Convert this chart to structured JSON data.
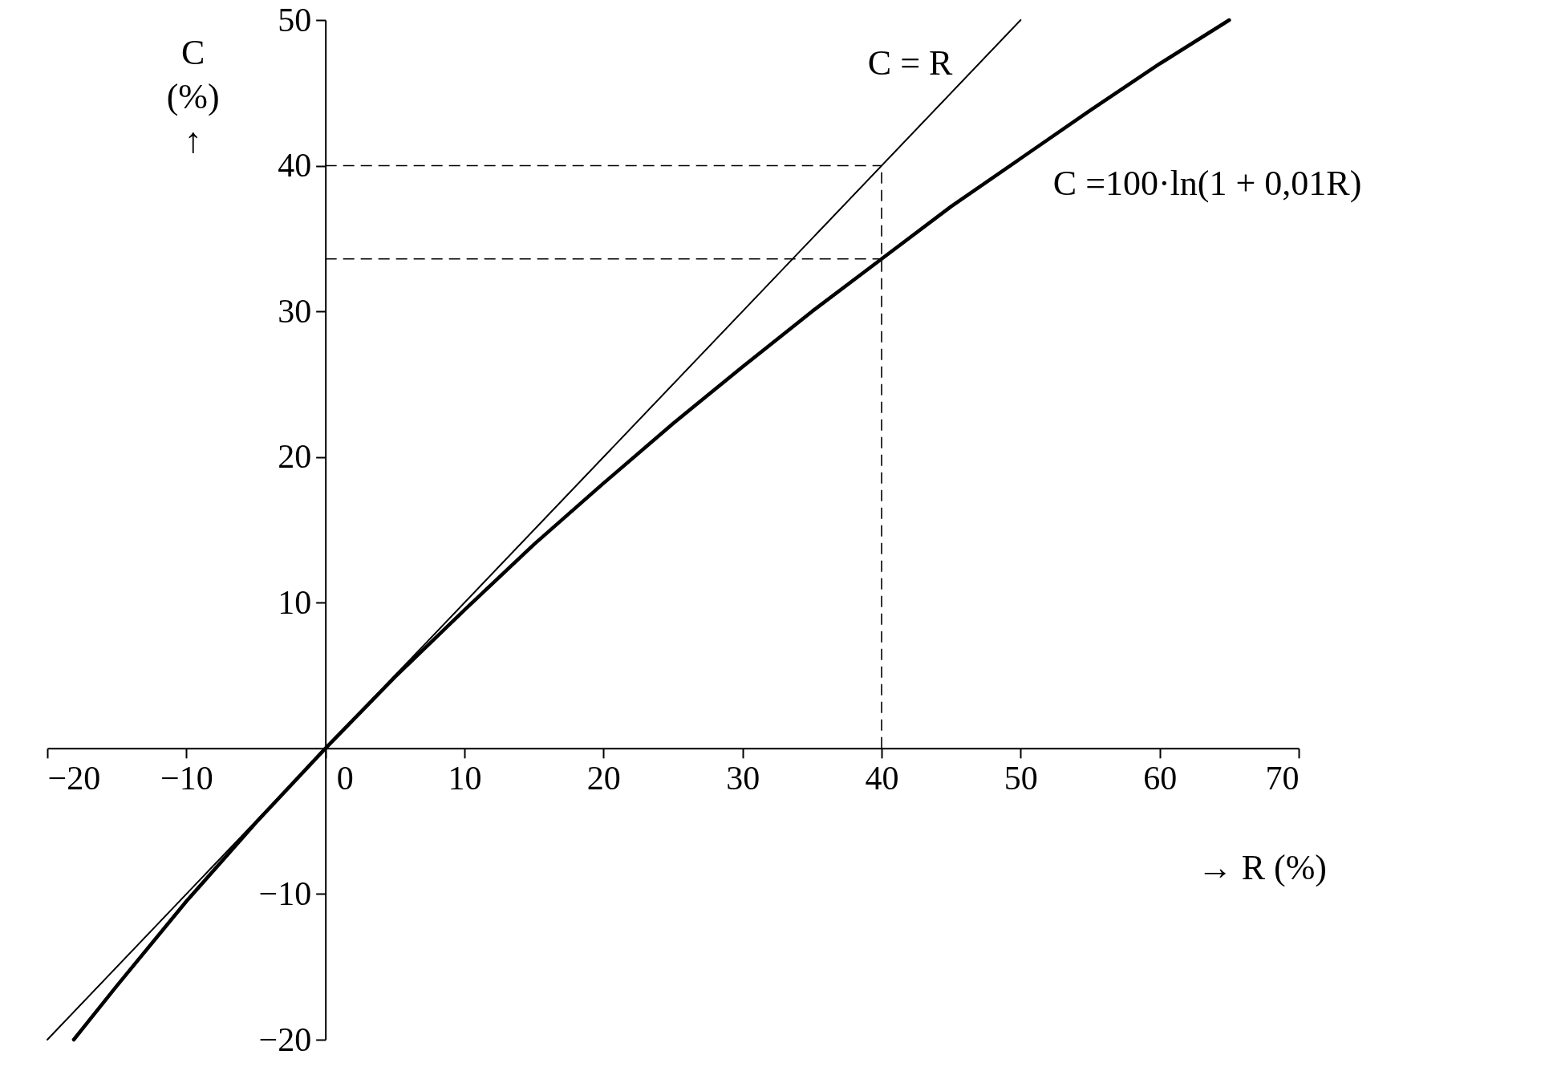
{
  "chart_data": {
    "type": "line",
    "xlabel": "→ R (%)",
    "ylabel": "C (%) ↑",
    "xlim": [
      -20,
      70
    ],
    "xticks": [
      -20,
      -10,
      0,
      10,
      20,
      30,
      40,
      50,
      60,
      70
    ],
    "ylim": [
      -20,
      50
    ],
    "yticks": [
      -20,
      -10,
      10,
      20,
      30,
      40,
      50
    ],
    "series": [
      {
        "name": "C = R",
        "color": "#000000",
        "x": [
          -20,
          50
        ],
        "values": [
          -20,
          50
        ]
      },
      {
        "name": "C =100·ln(1 + 0,01R)",
        "color": "#000000",
        "x": [
          -18.1,
          -15,
          -10,
          -5,
          0,
          5,
          10,
          15,
          20,
          25,
          30,
          35,
          40,
          45,
          50,
          55,
          60,
          65
        ],
        "values": [
          -20,
          -16.3,
          -10.5,
          -5.1,
          0,
          4.9,
          9.5,
          14.0,
          18.2,
          22.3,
          26.2,
          30.0,
          33.6,
          37.2,
          40.5,
          43.8,
          47.0,
          50.0
        ]
      }
    ],
    "ref_lines": [
      {
        "axis": "y",
        "value": 40,
        "line_style": "dashed"
      },
      {
        "axis": "y",
        "value": 33.6,
        "line_style": "dashed"
      },
      {
        "axis": "x",
        "value": 40,
        "line_style": "dashed"
      }
    ],
    "grid": false,
    "marker": "none",
    "line_style": "solid"
  }
}
